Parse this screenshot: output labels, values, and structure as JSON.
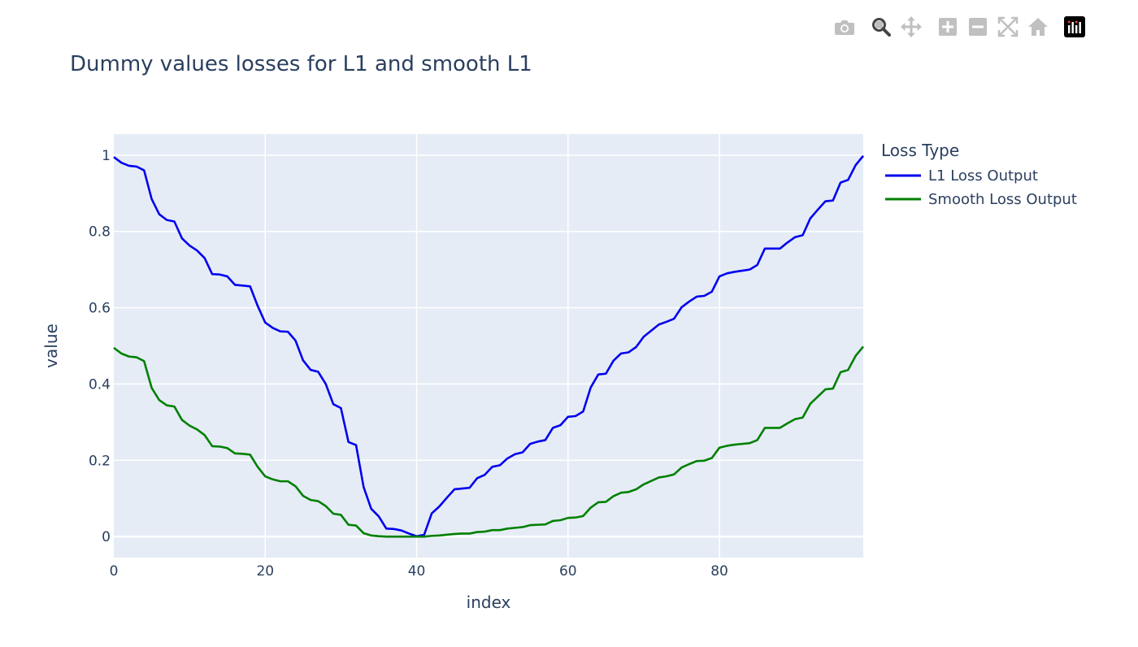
{
  "modebar": {
    "buttons": [
      "camera-icon",
      "zoom-icon",
      "pan-icon",
      "zoom-in-icon",
      "zoom-out-icon",
      "autoscale-icon",
      "reset-axes-icon",
      "plotly-logo-icon"
    ]
  },
  "chart_data": {
    "type": "line",
    "title": "Dummy values losses for L1 and smooth L1",
    "xlabel": "index",
    "ylabel": "value",
    "xlim": [
      0,
      99
    ],
    "ylim": [
      -0.055,
      1.055
    ],
    "xticks": [
      0,
      20,
      40,
      60,
      80
    ],
    "xtick_labels": [
      "0",
      "20",
      "40",
      "60",
      "80"
    ],
    "yticks": [
      0,
      0.2,
      0.4,
      0.6,
      0.8,
      1
    ],
    "ytick_labels": [
      "0",
      "0.2",
      "0.4",
      "0.6",
      "0.8",
      "1"
    ],
    "grid": true,
    "plot_background": "#e5ecf6",
    "legend": {
      "title": "Loss Type",
      "position": "right"
    },
    "x": [
      0,
      1,
      2,
      3,
      4,
      5,
      6,
      7,
      8,
      9,
      10,
      11,
      12,
      13,
      14,
      15,
      16,
      17,
      18,
      19,
      20,
      21,
      22,
      23,
      24,
      25,
      26,
      27,
      28,
      29,
      30,
      31,
      32,
      33,
      34,
      35,
      36,
      37,
      38,
      39,
      40,
      41,
      42,
      43,
      44,
      45,
      46,
      47,
      48,
      49,
      50,
      51,
      52,
      53,
      54,
      55,
      56,
      57,
      58,
      59,
      60,
      61,
      62,
      63,
      64,
      65,
      66,
      67,
      68,
      69,
      70,
      71,
      72,
      73,
      74,
      75,
      76,
      77,
      78,
      79,
      80,
      81,
      82,
      83,
      84,
      85,
      86,
      87,
      88,
      89,
      90,
      91,
      92,
      93,
      94,
      95,
      96,
      97,
      98,
      99
    ],
    "series": [
      {
        "name": "L1 Loss Output",
        "color": "#0000ee",
        "values": [
          0.995,
          0.98,
          0.972,
          0.97,
          0.96,
          0.885,
          0.845,
          0.83,
          0.826,
          0.782,
          0.763,
          0.75,
          0.73,
          0.688,
          0.687,
          0.682,
          0.66,
          0.658,
          0.656,
          0.605,
          0.561,
          0.547,
          0.538,
          0.537,
          0.514,
          0.462,
          0.437,
          0.432,
          0.4,
          0.347,
          0.337,
          0.248,
          0.24,
          0.13,
          0.073,
          0.053,
          0.021,
          0.02,
          0.016,
          0.008,
          0.001,
          0.005,
          0.061,
          0.079,
          0.102,
          0.124,
          0.126,
          0.128,
          0.153,
          0.162,
          0.183,
          0.187,
          0.205,
          0.216,
          0.221,
          0.243,
          0.249,
          0.253,
          0.285,
          0.292,
          0.314,
          0.316,
          0.328,
          0.391,
          0.425,
          0.427,
          0.461,
          0.48,
          0.483,
          0.497,
          0.524,
          0.54,
          0.556,
          0.563,
          0.571,
          0.601,
          0.616,
          0.629,
          0.631,
          0.642,
          0.682,
          0.69,
          0.694,
          0.697,
          0.7,
          0.712,
          0.755,
          0.755,
          0.755,
          0.771,
          0.785,
          0.79,
          0.834,
          0.857,
          0.879,
          0.881,
          0.928,
          0.935,
          0.974,
          0.998
        ]
      },
      {
        "name": "Smooth Loss Output",
        "color": "#008000",
        "values": [
          0.495,
          0.48,
          0.472,
          0.47,
          0.46,
          0.39,
          0.358,
          0.344,
          0.341,
          0.306,
          0.291,
          0.281,
          0.266,
          0.237,
          0.236,
          0.232,
          0.218,
          0.217,
          0.215,
          0.183,
          0.158,
          0.15,
          0.145,
          0.145,
          0.132,
          0.107,
          0.096,
          0.093,
          0.08,
          0.06,
          0.057,
          0.031,
          0.029,
          0.009,
          0.003,
          0.001,
          0.0,
          0.0,
          0.0,
          0.0,
          0.0,
          0.0,
          0.002,
          0.003,
          0.005,
          0.007,
          0.008,
          0.008,
          0.012,
          0.013,
          0.017,
          0.017,
          0.021,
          0.023,
          0.025,
          0.03,
          0.031,
          0.032,
          0.041,
          0.043,
          0.049,
          0.05,
          0.054,
          0.076,
          0.09,
          0.091,
          0.106,
          0.115,
          0.117,
          0.124,
          0.137,
          0.146,
          0.155,
          0.158,
          0.163,
          0.181,
          0.19,
          0.198,
          0.199,
          0.206,
          0.233,
          0.238,
          0.241,
          0.243,
          0.245,
          0.253,
          0.285,
          0.285,
          0.285,
          0.297,
          0.308,
          0.312,
          0.348,
          0.367,
          0.386,
          0.388,
          0.431,
          0.437,
          0.474,
          0.498
        ]
      }
    ]
  }
}
